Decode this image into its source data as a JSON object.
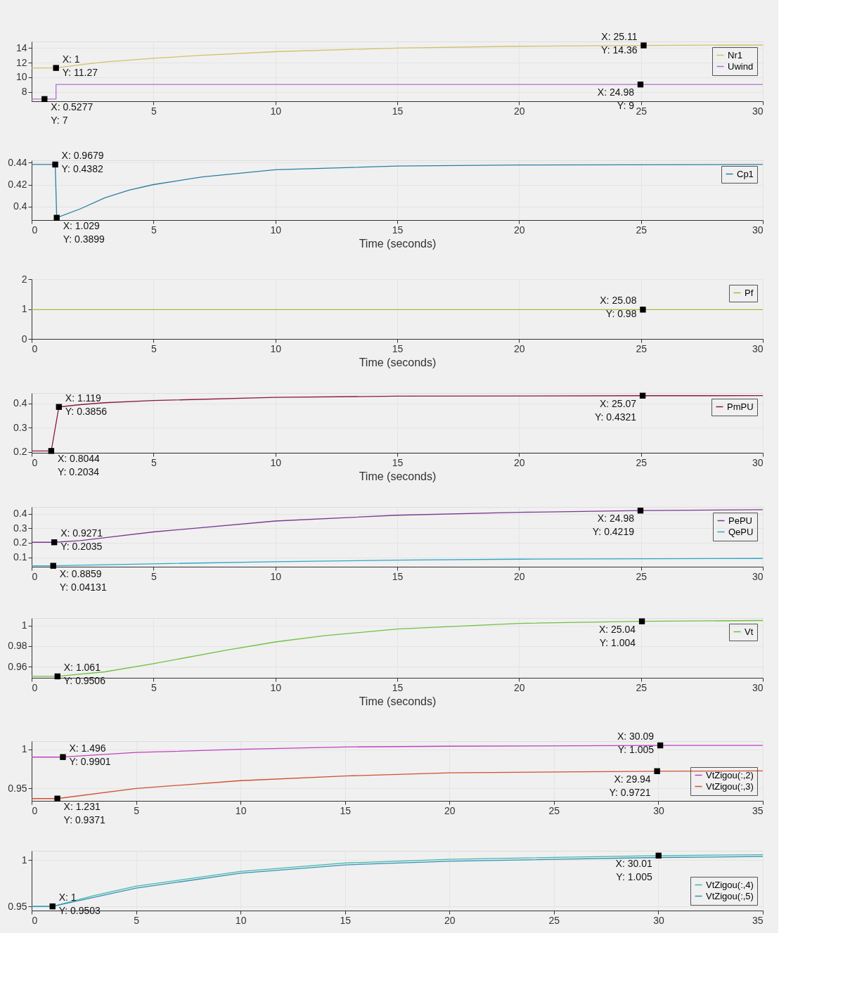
{
  "chart_data": [
    {
      "type": "line",
      "xlim": [
        0,
        30
      ],
      "xticks": [
        5,
        10,
        15,
        20,
        25,
        30
      ],
      "ylim": [
        6.7,
        14.9
      ],
      "yticks": [
        8,
        10,
        12,
        14
      ],
      "grid": true,
      "legend": "top right",
      "line_style": "solid",
      "series": [
        {
          "name": "Nr1",
          "color": "#d4c06a",
          "x": [
            0,
            1,
            2,
            3,
            5,
            7,
            10,
            15,
            20,
            25.11,
            30
          ],
          "values": [
            11.27,
            11.27,
            11.7,
            12.1,
            12.6,
            13.0,
            13.5,
            14.0,
            14.25,
            14.36,
            14.42
          ]
        },
        {
          "name": "Uwind",
          "color": "#b070c8",
          "x": [
            0,
            1,
            1,
            30
          ],
          "values": [
            7,
            7,
            9,
            9
          ]
        }
      ],
      "annotations": [
        {
          "text": "X: 1\nY: 11.27",
          "x": 1,
          "y": 11.27
        },
        {
          "text": "X: 25.11\nY: 14.36",
          "x": 25.11,
          "y": 14.36
        },
        {
          "text": "X: 0.5277\nY: 7",
          "x": 0.5277,
          "y": 7
        },
        {
          "text": "X: 24.98\nY: 9",
          "x": 24.98,
          "y": 9
        }
      ]
    },
    {
      "type": "line",
      "xlabel": "Time (seconds)",
      "xlim": [
        0,
        30
      ],
      "xticks": [
        0,
        5,
        10,
        15,
        20,
        25,
        30
      ],
      "ylim": [
        0.3878,
        0.442
      ],
      "yticks": [
        0.4,
        0.42,
        0.44
      ],
      "grid": true,
      "legend": "top right",
      "line_style": "solid",
      "series": [
        {
          "name": "Cp1",
          "color": "#2a7ea0",
          "x": [
            0,
            0.9679,
            1.029,
            2,
            3,
            4,
            5,
            7,
            10,
            15,
            20,
            30
          ],
          "values": [
            0.4382,
            0.4382,
            0.3899,
            0.398,
            0.408,
            0.415,
            0.42,
            0.427,
            0.4335,
            0.4368,
            0.4378,
            0.4382
          ]
        }
      ],
      "annotations": [
        {
          "text": "X: 0.9679\nY: 0.4382",
          "x": 0.9679,
          "y": 0.4382
        },
        {
          "text": "X: 1.029\nY: 0.3899",
          "x": 1.029,
          "y": 0.3899
        }
      ]
    },
    {
      "type": "line",
      "xlabel": "Time (seconds)",
      "xlim": [
        0,
        30
      ],
      "xticks": [
        0,
        5,
        10,
        15,
        20,
        25,
        30
      ],
      "ylim": [
        0,
        2
      ],
      "yticks": [
        0,
        1,
        2
      ],
      "grid": true,
      "legend": "top right",
      "line_style": "solid",
      "series": [
        {
          "name": "Pf",
          "color": "#a0c040",
          "x": [
            0,
            30
          ],
          "values": [
            0.98,
            0.98
          ]
        }
      ],
      "annotations": [
        {
          "text": "X: 25.08\nY: 0.98",
          "x": 25.08,
          "y": 0.98
        }
      ]
    },
    {
      "type": "line",
      "xlabel": "Time (seconds)",
      "xlim": [
        0,
        30
      ],
      "xticks": [
        0,
        5,
        10,
        15,
        20,
        25,
        30
      ],
      "ylim": [
        0.1957,
        0.443
      ],
      "yticks": [
        0.2,
        0.3,
        0.4
      ],
      "grid": true,
      "legend": "top right",
      "line_style": "solid",
      "series": [
        {
          "name": "PmPU",
          "color": "#8b1a3a",
          "x": [
            0,
            0.8044,
            1.119,
            2,
            3,
            5,
            10,
            15,
            25.07,
            30
          ],
          "values": [
            0.2034,
            0.2034,
            0.3856,
            0.395,
            0.403,
            0.412,
            0.425,
            0.43,
            0.4321,
            0.4322
          ]
        }
      ],
      "annotations": [
        {
          "text": "X: 1.119\nY: 0.3856",
          "x": 1.119,
          "y": 0.3856
        },
        {
          "text": "X: 25.07\nY: 0.4321",
          "x": 25.07,
          "y": 0.4321
        },
        {
          "text": "X: 0.8044\nY: 0.2034",
          "x": 0.8044,
          "y": 0.2034
        }
      ]
    },
    {
      "type": "line",
      "xlim": [
        0,
        30
      ],
      "xticks": [
        0,
        5,
        10,
        15,
        20,
        25,
        30
      ],
      "ylim": [
        0.035,
        0.447
      ],
      "yticks": [
        0.1,
        0.2,
        0.3,
        0.4
      ],
      "grid": true,
      "legend": "top right",
      "line_style": "solid",
      "series": [
        {
          "name": "PePU",
          "color": "#7a3a90",
          "x": [
            0,
            0.9271,
            2,
            5,
            10,
            15,
            20,
            24.98,
            30
          ],
          "values": [
            0.2035,
            0.2035,
            0.215,
            0.275,
            0.35,
            0.39,
            0.41,
            0.4219,
            0.428
          ]
        },
        {
          "name": "QePU",
          "color": "#30a8c8",
          "x": [
            0,
            0.8859,
            5,
            10,
            15,
            20,
            30
          ],
          "values": [
            0.04131,
            0.04131,
            0.055,
            0.07,
            0.08,
            0.087,
            0.092
          ]
        }
      ],
      "annotations": [
        {
          "text": "X: 0.9271\nY: 0.2035",
          "x": 0.9271,
          "y": 0.2035
        },
        {
          "text": "X: 24.98\nY: 0.4219",
          "x": 24.98,
          "y": 0.4219
        },
        {
          "text": "X: 0.8859\nY: 0.04131",
          "x": 0.8859,
          "y": 0.04131
        }
      ]
    },
    {
      "type": "line",
      "xlabel": "Time (seconds)",
      "xlim": [
        0,
        30
      ],
      "xticks": [
        0,
        5,
        10,
        15,
        20,
        25,
        30
      ],
      "ylim": [
        0.9492,
        1.0072
      ],
      "yticks": [
        0.96,
        0.98,
        1
      ],
      "grid": true,
      "legend": "top right",
      "line_style": "solid",
      "series": [
        {
          "name": "Vt",
          "color": "#70c040",
          "x": [
            0,
            1.061,
            3,
            5,
            8,
            10,
            12,
            15,
            20,
            25.04,
            30
          ],
          "values": [
            0.9506,
            0.9506,
            0.955,
            0.963,
            0.976,
            0.984,
            0.99,
            0.9965,
            1.002,
            1.004,
            1.0048
          ]
        }
      ],
      "annotations": [
        {
          "text": "X: 1.061\nY: 0.9506",
          "x": 1.061,
          "y": 0.9506
        },
        {
          "text": "X: 25.04\nY: 1.004",
          "x": 25.04,
          "y": 1.004
        }
      ]
    },
    {
      "type": "line",
      "xlim": [
        0,
        35
      ],
      "xticks": [
        0,
        5,
        10,
        15,
        20,
        25,
        30,
        35
      ],
      "ylim": [
        0.9342,
        1.0105
      ],
      "yticks": [
        0.95,
        1
      ],
      "grid": true,
      "legend": "bottom right",
      "line_style": "solid",
      "series": [
        {
          "name": "VtZigou(:,2)",
          "color": "#c040c0",
          "x": [
            0,
            1.496,
            5,
            10,
            15,
            20,
            30.09,
            35
          ],
          "values": [
            0.9901,
            0.9901,
            0.996,
            1.0,
            1.003,
            1.004,
            1.005,
            1.005
          ]
        },
        {
          "name": "VtZigou(:,3)",
          "color": "#d05030",
          "x": [
            0,
            1.231,
            5,
            10,
            15,
            20,
            29.94,
            35
          ],
          "values": [
            0.9371,
            0.9371,
            0.95,
            0.96,
            0.966,
            0.97,
            0.9721,
            0.9725
          ]
        }
      ],
      "annotations": [
        {
          "text": "X: 1.496\nY: 0.9901",
          "x": 1.496,
          "y": 0.9901
        },
        {
          "text": "X: 30.09\nY: 1.005",
          "x": 30.09,
          "y": 1.005
        },
        {
          "text": "X: 1.231\nY: 0.9371",
          "x": 1.231,
          "y": 0.9371
        },
        {
          "text": "X: 29.94\nY: 0.9721",
          "x": 29.94,
          "y": 0.9721
        }
      ]
    },
    {
      "type": "line",
      "xlim": [
        0,
        35
      ],
      "xticks": [
        0,
        5,
        10,
        15,
        20,
        25,
        30,
        35
      ],
      "ylim": [
        0.9458,
        1.0102
      ],
      "yticks": [
        0.95,
        1
      ],
      "grid": true,
      "legend": "bottom right",
      "line_style": "solid",
      "series": [
        {
          "name": "VtZigou(:,4)",
          "color": "#40b8a8",
          "x": [
            0,
            1,
            3,
            5,
            10,
            15,
            20,
            30.01,
            35
          ],
          "values": [
            0.9503,
            0.9503,
            0.962,
            0.972,
            0.988,
            0.997,
            1.001,
            1.005,
            1.006
          ]
        },
        {
          "name": "VtZigou(:,5)",
          "color": "#3090b8",
          "x": [
            0,
            1,
            5,
            10,
            15,
            20,
            30,
            35
          ],
          "values": [
            0.9503,
            0.9503,
            0.97,
            0.986,
            0.995,
            0.999,
            1.003,
            1.004
          ]
        }
      ],
      "annotations": [
        {
          "text": "X: 1\nY: 0.9503",
          "x": 1,
          "y": 0.9503
        },
        {
          "text": "X: 30.01\nY: 1.005",
          "x": 30.01,
          "y": 1.005
        }
      ]
    }
  ]
}
